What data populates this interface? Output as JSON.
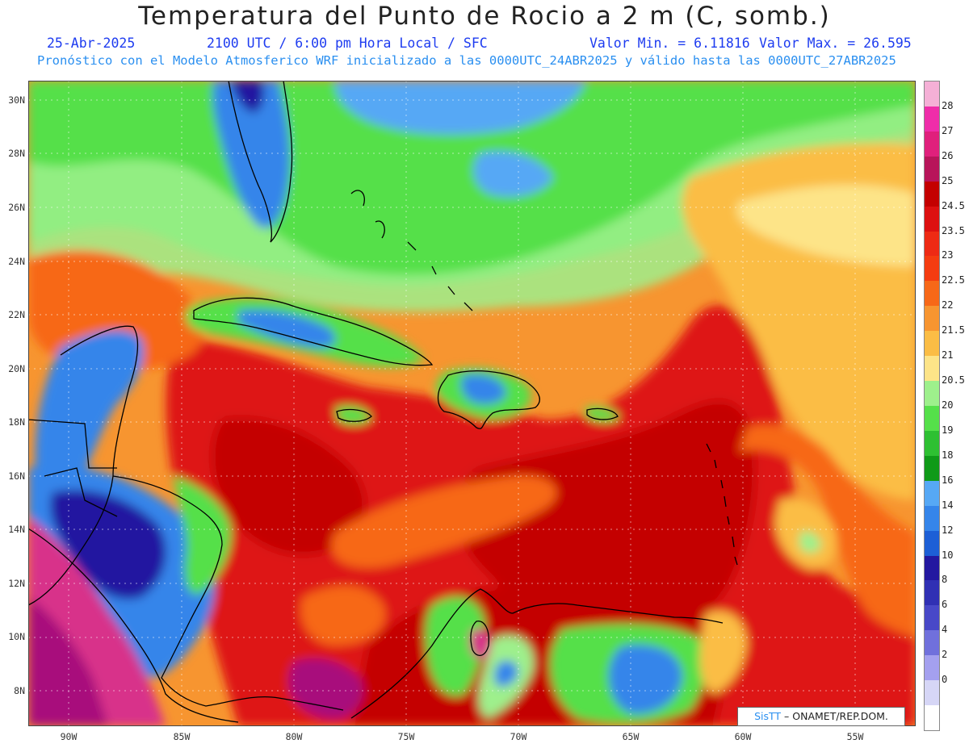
{
  "header": {
    "title": "Temperatura del Punto de Rocio a 2 m (C, somb.)",
    "date": "25-Abr-2025",
    "time_label": "2100 UTC / 6:00 pm Hora Local / SFC",
    "min_label": "Valor Min. = 6.11816",
    "max_label": "Valor Max. = 26.595",
    "forecast_text": "Pronóstico con el Modelo Atmosferico WRF inicializado a las 0000UTC_24ABR2025 y válido hasta las 0000UTC_27ABR2025"
  },
  "axes": {
    "lat_labels": [
      "30N",
      "28N",
      "26N",
      "24N",
      "22N",
      "20N",
      "18N",
      "16N",
      "14N",
      "12N",
      "10N",
      "8N"
    ],
    "lon_labels": [
      "90W",
      "85W",
      "80W",
      "75W",
      "70W",
      "65W",
      "60W",
      "55W"
    ]
  },
  "colorbar": {
    "labels": [
      "28",
      "27",
      "26",
      "25",
      "24.5",
      "23.5",
      "23",
      "22.5",
      "22",
      "21.5",
      "21",
      "20.5",
      "20",
      "19",
      "18",
      "16",
      "14",
      "12",
      "10",
      "8",
      "6",
      "4",
      "2",
      "0"
    ],
    "colors": [
      "#f5b0d6",
      "#ef2da9",
      "#e0207c",
      "#b8155a",
      "#c40000",
      "#dd1010",
      "#ee2a14",
      "#f53c10",
      "#f76818",
      "#f79530",
      "#fbbd45",
      "#fde488",
      "#9ef08c",
      "#55e04a",
      "#2ec032",
      "#0f9a18",
      "#56a8f5",
      "#3585ea",
      "#1d5fd6",
      "#2318a0",
      "#3030b4",
      "#4848c8",
      "#7070dc",
      "#a4a0ef",
      "#d6d6f6",
      "#ffffff"
    ]
  },
  "credit": {
    "brand": "SisTT",
    "org": "– ONAMET/REP.DOM."
  },
  "map": {
    "palette": {
      "pink": "#d8318a",
      "magenta": "#a8107c",
      "dkred": "#c40000",
      "red": "#de1212",
      "redorange": "#ee3214",
      "orange": "#f76818",
      "ltorange": "#f79530",
      "yellow": "#fbbd45",
      "paleyellow": "#fde488",
      "ltgreen": "#9ef08c",
      "green": "#55e04a",
      "dkgreen": "#0f9a18",
      "ltblue": "#56a8f5",
      "blue": "#3585ea",
      "dkblue": "#1d5fd6",
      "navy": "#2318a0",
      "land": "#000000"
    }
  }
}
